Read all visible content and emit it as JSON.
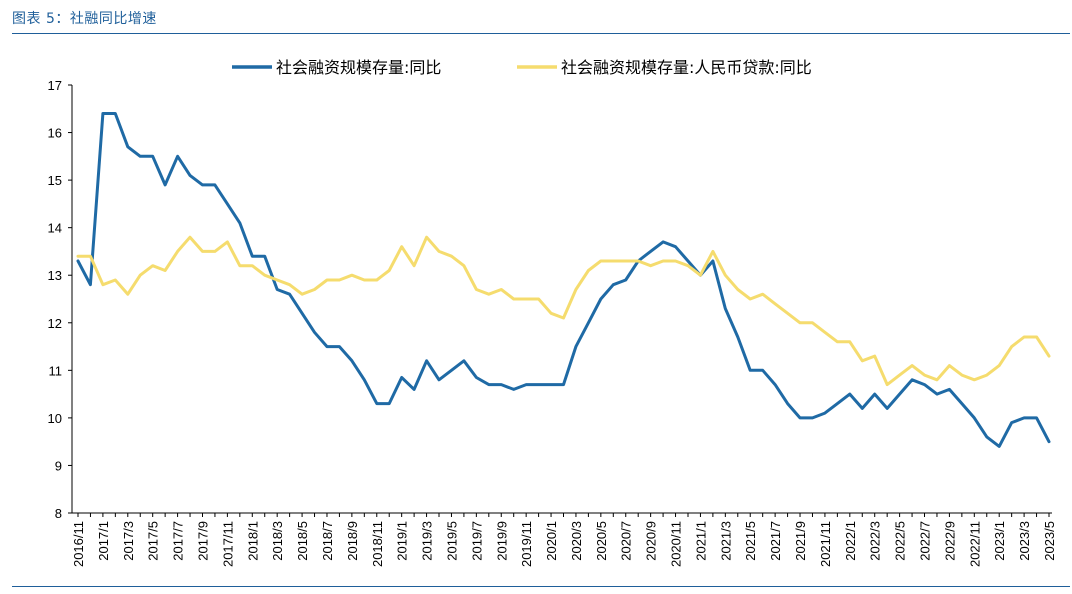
{
  "header": {
    "title": "图表 5：社融同比增速"
  },
  "colors": {
    "accent": "#1f5f9a",
    "series1": "#1f6aa5",
    "series2": "#f5dc6e"
  },
  "chart_data": {
    "type": "line",
    "title": "",
    "xlabel": "",
    "ylabel": "",
    "ylim": [
      8,
      17
    ],
    "yticks": [
      "8",
      "9",
      "10",
      "11",
      "12",
      "13",
      "14",
      "15",
      "16",
      "17"
    ],
    "legend_position": "top-center",
    "grid": false,
    "x": [
      "2016/11",
      "2016/12",
      "2017/1",
      "2017/2",
      "2017/3",
      "2017/4",
      "2017/5",
      "2017/6",
      "2017/7",
      "2017/8",
      "2017/9",
      "2017/10",
      "2017/11",
      "2017/12",
      "2018/1",
      "2018/2",
      "2018/3",
      "2018/4",
      "2018/5",
      "2018/6",
      "2018/7",
      "2018/8",
      "2018/9",
      "2018/10",
      "2018/11",
      "2018/12",
      "2019/1",
      "2019/2",
      "2019/3",
      "2019/4",
      "2019/5",
      "2019/6",
      "2019/7",
      "2019/8",
      "2019/9",
      "2019/10",
      "2019/11",
      "2019/12",
      "2020/1",
      "2020/2",
      "2020/3",
      "2020/4",
      "2020/5",
      "2020/6",
      "2020/7",
      "2020/8",
      "2020/9",
      "2020/10",
      "2020/11",
      "2020/12",
      "2021/1",
      "2021/2",
      "2021/3",
      "2021/4",
      "2021/5",
      "2021/6",
      "2021/7",
      "2021/8",
      "2021/9",
      "2021/10",
      "2021/11",
      "2021/12",
      "2022/1",
      "2022/2",
      "2022/3",
      "2022/4",
      "2022/5",
      "2022/6",
      "2022/7",
      "2022/8",
      "2022/9",
      "2022/10",
      "2022/11",
      "2022/12",
      "2023/1",
      "2023/2",
      "2023/3",
      "2023/4",
      "2023/5"
    ],
    "xtick_labels": [
      "2016/11",
      "2017/1",
      "2017/3",
      "2017/5",
      "2017/7",
      "2017/9",
      "2017/11",
      "2018/1",
      "2018/3",
      "2018/5",
      "2018/7",
      "2018/9",
      "2018/11",
      "2019/1",
      "2019/3",
      "2019/5",
      "2019/7",
      "2019/9",
      "2019/11",
      "2020/1",
      "2020/3",
      "2020/5",
      "2020/7",
      "2020/9",
      "2020/11",
      "2021/1",
      "2021/3",
      "2021/5",
      "2021/7",
      "2021/9",
      "2021/11",
      "2022/1",
      "2022/3",
      "2022/5",
      "2022/7",
      "2022/9",
      "2022/11",
      "2023/1",
      "2023/3",
      "2023/5"
    ],
    "series": [
      {
        "name": "社会融资规模存量:同比",
        "values": [
          13.3,
          12.8,
          16.4,
          16.4,
          15.7,
          15.5,
          15.5,
          14.9,
          15.5,
          15.1,
          14.9,
          14.9,
          14.5,
          14.1,
          13.4,
          13.4,
          12.7,
          12.6,
          12.2,
          11.8,
          11.5,
          11.5,
          11.2,
          10.8,
          10.3,
          10.3,
          10.85,
          10.6,
          11.2,
          10.8,
          11.0,
          11.2,
          10.85,
          10.7,
          10.7,
          10.6,
          10.7,
          10.7,
          10.7,
          10.7,
          11.5,
          12.0,
          12.5,
          12.8,
          12.9,
          13.3,
          13.5,
          13.7,
          13.6,
          13.3,
          13.0,
          13.3,
          12.3,
          11.7,
          11.0,
          11.0,
          10.7,
          10.3,
          10.0,
          10.0,
          10.1,
          10.3,
          10.5,
          10.2,
          10.5,
          10.2,
          10.5,
          10.8,
          10.7,
          10.5,
          10.6,
          10.3,
          10.0,
          9.6,
          9.4,
          9.9,
          10.0,
          10.0,
          9.5
        ]
      },
      {
        "name": "社会融资规模存量:人民币贷款:同比",
        "values": [
          13.4,
          13.4,
          12.8,
          12.9,
          12.6,
          13.0,
          13.2,
          13.1,
          13.5,
          13.8,
          13.5,
          13.5,
          13.7,
          13.2,
          13.2,
          13.0,
          12.9,
          12.8,
          12.6,
          12.7,
          12.9,
          12.9,
          13.0,
          12.9,
          12.9,
          13.1,
          13.6,
          13.2,
          13.8,
          13.5,
          13.4,
          13.2,
          12.7,
          12.6,
          12.7,
          12.5,
          12.5,
          12.5,
          12.2,
          12.1,
          12.7,
          13.1,
          13.3,
          13.3,
          13.3,
          13.3,
          13.2,
          13.3,
          13.3,
          13.2,
          13.0,
          13.5,
          13.0,
          12.7,
          12.5,
          12.6,
          12.4,
          12.2,
          12.0,
          12.0,
          11.8,
          11.6,
          11.6,
          11.2,
          11.3,
          10.7,
          10.9,
          11.1,
          10.9,
          10.8,
          11.1,
          10.9,
          10.8,
          10.9,
          11.1,
          11.5,
          11.7,
          11.7,
          11.3
        ]
      }
    ]
  }
}
